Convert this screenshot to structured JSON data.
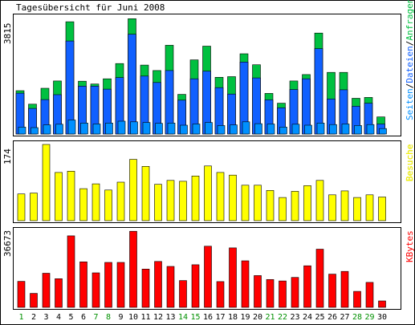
{
  "title": "Tagesübersicht für Juni 2008",
  "colors": {
    "panel_bg": "#ffffff",
    "frame": "#000000",
    "pages": "#0090ff",
    "files": "#1060ff",
    "requests": "#00c040",
    "visits": "#ffff00",
    "kbytes": "#ff0000",
    "weekend_day": "#009000",
    "weekday": "#000000"
  },
  "chart_data": [
    {
      "type": "bar",
      "panel": "hits",
      "title": "Tagesübersicht für Juni 2008",
      "y_max_label": "3815",
      "legend": [
        "Seiten",
        "Dateien",
        "Anfragen"
      ],
      "legend_separator": "/",
      "legend_colors": [
        "#0090ff",
        "#1060ff",
        "#00c040"
      ],
      "categories": [
        "1",
        "2",
        "3",
        "4",
        "5",
        "6",
        "7",
        "8",
        "9",
        "10",
        "11",
        "12",
        "13",
        "14",
        "15",
        "16",
        "17",
        "18",
        "19",
        "20",
        "21",
        "22",
        "23",
        "24",
        "25",
        "26",
        "27",
        "28",
        "29",
        "30"
      ],
      "ylim": [
        0,
        3815
      ],
      "series": [
        {
          "name": "Anfragen",
          "values": [
            1420,
            980,
            1500,
            1740,
            3680,
            1730,
            1640,
            1810,
            2310,
            3780,
            2260,
            2080,
            2910,
            1300,
            2430,
            2880,
            1860,
            1880,
            2630,
            2270,
            1330,
            1010,
            1740,
            1950,
            3310,
            2020,
            2020,
            1170,
            1200,
            560
          ]
        },
        {
          "name": "Dateien",
          "values": [
            1340,
            840,
            1130,
            1290,
            3050,
            1570,
            1570,
            1470,
            1850,
            3270,
            1900,
            1690,
            2080,
            1110,
            1810,
            2060,
            1520,
            1310,
            2360,
            1840,
            1120,
            860,
            1460,
            1810,
            2800,
            1150,
            1450,
            910,
            1010,
            330
          ]
        },
        {
          "name": "Seiten",
          "values": [
            230,
            210,
            300,
            320,
            460,
            360,
            330,
            360,
            420,
            400,
            380,
            350,
            360,
            290,
            330,
            380,
            280,
            300,
            400,
            340,
            330,
            230,
            320,
            290,
            360,
            310,
            330,
            280,
            310,
            180
          ]
        }
      ]
    },
    {
      "type": "bar",
      "panel": "visits",
      "y_max_label": "174",
      "legend": [
        "Besuche"
      ],
      "legend_colors": [
        "#ffff00"
      ],
      "categories": [
        "1",
        "2",
        "3",
        "4",
        "5",
        "6",
        "7",
        "8",
        "9",
        "10",
        "11",
        "12",
        "13",
        "14",
        "15",
        "16",
        "17",
        "18",
        "19",
        "20",
        "21",
        "22",
        "23",
        "24",
        "25",
        "26",
        "27",
        "28",
        "29",
        "30"
      ],
      "ylim": [
        0,
        174
      ],
      "series": [
        {
          "name": "Besuche",
          "values": [
            61,
            63,
            174,
            110,
            113,
            73,
            84,
            70,
            88,
            140,
            124,
            83,
            92,
            90,
            102,
            125,
            110,
            104,
            81,
            81,
            69,
            53,
            67,
            80,
            92,
            59,
            68,
            53,
            59,
            54
          ]
        }
      ]
    },
    {
      "type": "bar",
      "panel": "kbytes",
      "y_max_label": "36673",
      "legend": [
        "KBytes"
      ],
      "legend_colors": [
        "#ff0000"
      ],
      "categories": [
        "1",
        "2",
        "3",
        "4",
        "5",
        "6",
        "7",
        "8",
        "9",
        "10",
        "11",
        "12",
        "13",
        "14",
        "15",
        "16",
        "17",
        "18",
        "19",
        "20",
        "21",
        "22",
        "23",
        "24",
        "25",
        "26",
        "27",
        "28",
        "29",
        "30"
      ],
      "ylim": [
        0,
        36673
      ],
      "series": [
        {
          "name": "KBytes",
          "values": [
            12500,
            6700,
            16400,
            13800,
            34400,
            21900,
            16600,
            21600,
            21600,
            36600,
            18400,
            22100,
            19700,
            12900,
            20500,
            29400,
            12400,
            28600,
            22400,
            15300,
            13400,
            12700,
            14400,
            20000,
            28000,
            16000,
            17300,
            7700,
            12000,
            3100
          ]
        }
      ]
    }
  ],
  "x_day_color_keys": [
    "weekend_day",
    "weekday",
    "weekday",
    "weekday",
    "weekday",
    "weekday",
    "weekend_day",
    "weekend_day",
    "weekday",
    "weekday",
    "weekday",
    "weekday",
    "weekday",
    "weekend_day",
    "weekend_day",
    "weekday",
    "weekday",
    "weekday",
    "weekday",
    "weekday",
    "weekend_day",
    "weekend_day",
    "weekday",
    "weekday",
    "weekday",
    "weekday",
    "weekday",
    "weekend_day",
    "weekend_day",
    "weekday"
  ]
}
